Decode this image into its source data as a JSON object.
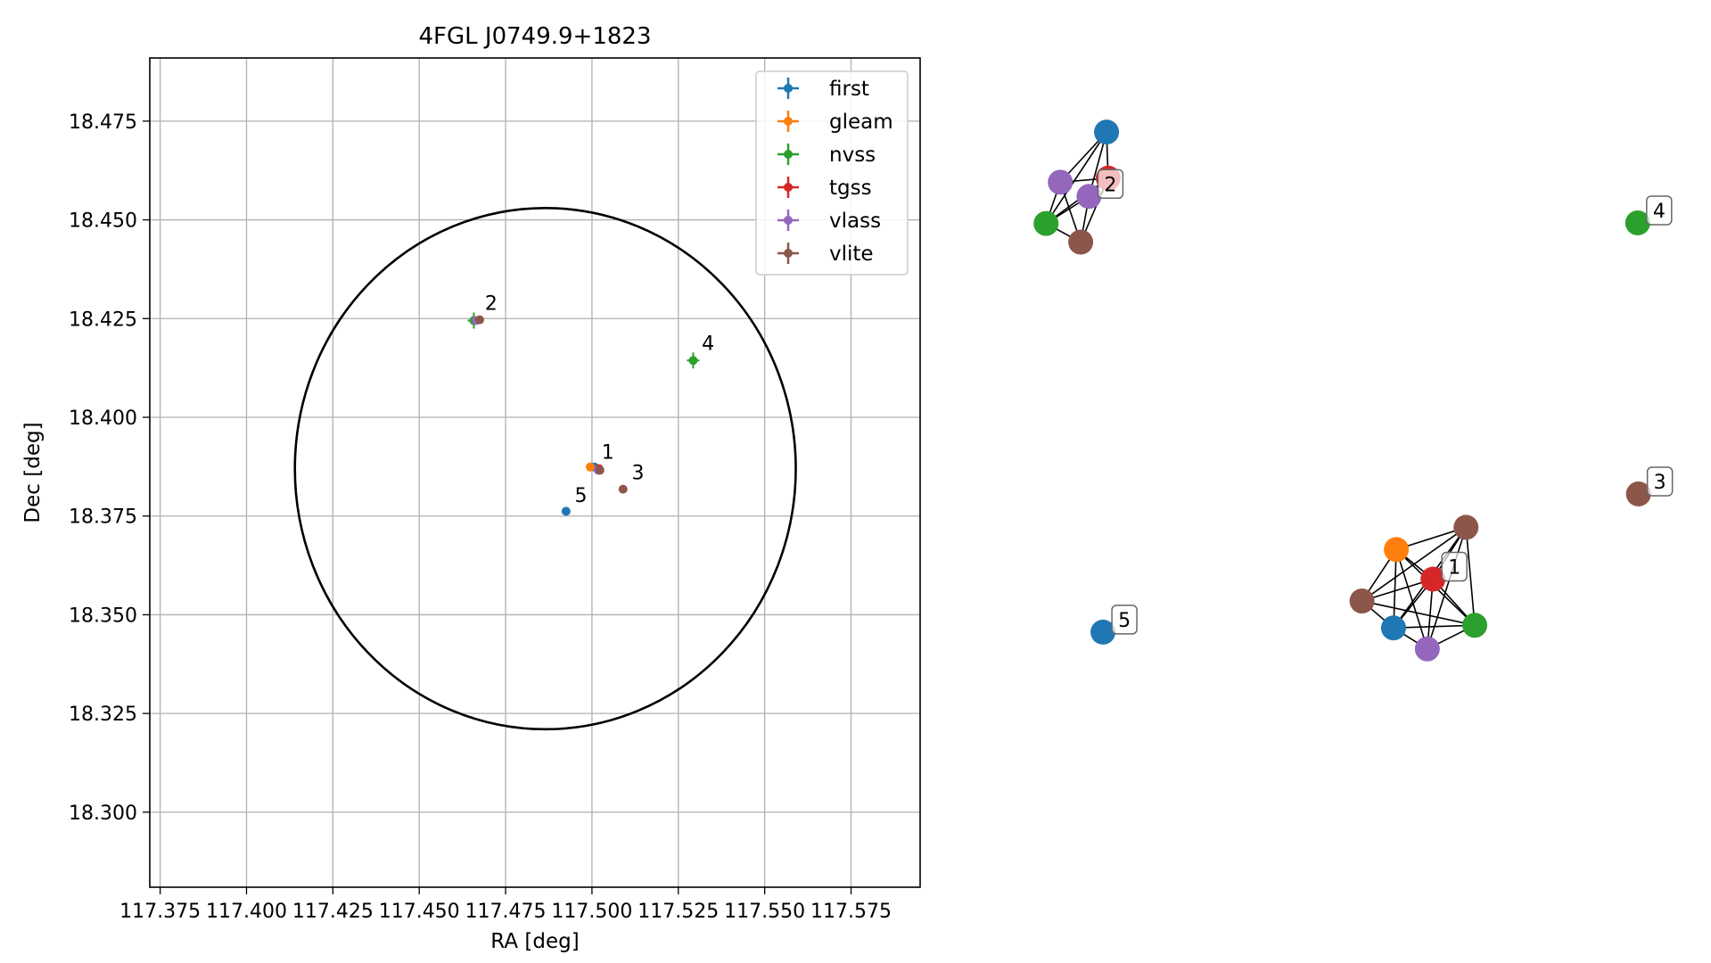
{
  "chart_data": [
    {
      "type": "scatter",
      "title": "4FGL J0749.9+1823",
      "xlabel": "RA [deg]",
      "ylabel": "Dec [deg]",
      "xlim": [
        117.372,
        117.595
      ],
      "ylim": [
        18.281,
        18.491
      ],
      "x_ticks": [
        "117.375",
        "117.400",
        "117.425",
        "117.450",
        "117.475",
        "117.500",
        "117.525",
        "117.550",
        "117.575"
      ],
      "y_ticks": [
        "18.300",
        "18.325",
        "18.350",
        "18.375",
        "18.400",
        "18.425",
        "18.450",
        "18.475"
      ],
      "grid": true,
      "legend_position": "top-right",
      "circle": {
        "center": [
          117.4865,
          18.387
        ],
        "radius_x": 0.0725,
        "radius_y": 0.066
      },
      "series": [
        {
          "name": "first",
          "color": "#1f77b4",
          "points": [
            {
              "x": 117.5007,
              "y": 18.3874
            },
            {
              "x": 117.4925,
              "y": 18.3762
            }
          ]
        },
        {
          "name": "gleam",
          "color": "#ff7f0e",
          "points": [
            {
              "x": 117.4995,
              "y": 18.3874
            }
          ]
        },
        {
          "name": "nvss",
          "color": "#2ca02c",
          "points": [
            {
              "x": 117.4658,
              "y": 18.4245
            },
            {
              "x": 117.5293,
              "y": 18.4144
            }
          ]
        },
        {
          "name": "tgss",
          "color": "#d62728",
          "points": [
            {
              "x": 117.502,
              "y": 18.387
            }
          ]
        },
        {
          "name": "vlass",
          "color": "#9467bd",
          "points": [
            {
              "x": 117.4665,
              "y": 18.4245
            },
            {
              "x": 117.5018,
              "y": 18.3866
            }
          ]
        },
        {
          "name": "vlite",
          "color": "#8c564b",
          "points": [
            {
              "x": 117.4675,
              "y": 18.4247
            },
            {
              "x": 117.5023,
              "y": 18.3866
            },
            {
              "x": 117.509,
              "y": 18.3818
            }
          ]
        }
      ],
      "annotations": [
        {
          "text": "1",
          "x": 117.5028,
          "y": 18.3895
        },
        {
          "text": "2",
          "x": 117.469,
          "y": 18.4272
        },
        {
          "text": "3",
          "x": 117.5115,
          "y": 18.3843
        },
        {
          "text": "4",
          "x": 117.5318,
          "y": 18.417
        },
        {
          "text": "5",
          "x": 117.495,
          "y": 18.3786
        }
      ]
    },
    {
      "type": "network",
      "nodes": [
        {
          "id": "g2-first",
          "color": "#1f77b4",
          "x": 0.1146,
          "y": 0.9472
        },
        {
          "id": "g2-tgss",
          "color": "#d62728",
          "x": 0.1172,
          "y": 0.8792
        },
        {
          "id": "g2-vlass-a",
          "color": "#9467bd",
          "x": 0.0394,
          "y": 0.8732
        },
        {
          "id": "g2-vlass-b",
          "color": "#9467bd",
          "x": 0.0861,
          "y": 0.8523
        },
        {
          "id": "g2-nvss",
          "color": "#2ca02c",
          "x": 0.0163,
          "y": 0.8123
        },
        {
          "id": "g2-vlite",
          "color": "#8c564b",
          "x": 0.0726,
          "y": 0.7848
        },
        {
          "id": "g4-nvss",
          "color": "#2ca02c",
          "x": 0.978,
          "y": 0.8132
        },
        {
          "id": "g3-vlite",
          "color": "#8c564b",
          "x": 0.9792,
          "y": 0.4132
        },
        {
          "id": "g1-vlite",
          "color": "#8c564b",
          "x": 0.6989,
          "y": 0.3639
        },
        {
          "id": "g1-gleam",
          "color": "#ff7f0e",
          "x": 0.5856,
          "y": 0.3312
        },
        {
          "id": "g1-tgss",
          "color": "#d62728",
          "x": 0.6452,
          "y": 0.2875
        },
        {
          "id": "g1-vlite-b",
          "color": "#8c564b",
          "x": 0.5298,
          "y": 0.2552
        },
        {
          "id": "g1-first",
          "color": "#1f77b4",
          "x": 0.5811,
          "y": 0.2155
        },
        {
          "id": "g1-nvss",
          "color": "#2ca02c",
          "x": 0.7131,
          "y": 0.2194
        },
        {
          "id": "g1-vlass",
          "color": "#9467bd",
          "x": 0.636,
          "y": 0.1845
        },
        {
          "id": "g5-first",
          "color": "#1f77b4",
          "x": 0.1088,
          "y": 0.2093
        }
      ],
      "edges": [
        [
          "g2-first",
          "g2-tgss"
        ],
        [
          "g2-first",
          "g2-vlass-a"
        ],
        [
          "g2-first",
          "g2-nvss"
        ],
        [
          "g2-first",
          "g2-vlass-b"
        ],
        [
          "g2-tgss",
          "g2-vlass-a"
        ],
        [
          "g2-tgss",
          "g2-vlass-b"
        ],
        [
          "g2-tgss",
          "g2-nvss"
        ],
        [
          "g2-tgss",
          "g2-vlite"
        ],
        [
          "g2-vlass-a",
          "g2-nvss"
        ],
        [
          "g2-vlass-a",
          "g2-vlite"
        ],
        [
          "g2-vlass-b",
          "g2-nvss"
        ],
        [
          "g2-vlass-b",
          "g2-vlite"
        ],
        [
          "g2-nvss",
          "g2-vlite"
        ],
        [
          "g1-vlite",
          "g1-gleam"
        ],
        [
          "g1-vlite",
          "g1-tgss"
        ],
        [
          "g1-vlite",
          "g1-vlite-b"
        ],
        [
          "g1-vlite",
          "g1-first"
        ],
        [
          "g1-vlite",
          "g1-nvss"
        ],
        [
          "g1-vlite",
          "g1-vlass"
        ],
        [
          "g1-gleam",
          "g1-tgss"
        ],
        [
          "g1-gleam",
          "g1-vlite-b"
        ],
        [
          "g1-gleam",
          "g1-first"
        ],
        [
          "g1-gleam",
          "g1-nvss"
        ],
        [
          "g1-gleam",
          "g1-vlass"
        ],
        [
          "g1-tgss",
          "g1-first"
        ],
        [
          "g1-tgss",
          "g1-nvss"
        ],
        [
          "g1-tgss",
          "g1-vlass"
        ],
        [
          "g1-vlite-b",
          "g1-first"
        ],
        [
          "g1-vlite-b",
          "g1-nvss"
        ],
        [
          "g1-vlite-b",
          "g1-tgss"
        ],
        [
          "g1-first",
          "g1-nvss"
        ],
        [
          "g1-first",
          "g1-vlass"
        ],
        [
          "g1-vlass",
          "g1-nvss"
        ]
      ],
      "labels": [
        {
          "text": "2",
          "node": "g2-vlass-b"
        },
        {
          "text": "4",
          "node": "g4-nvss"
        },
        {
          "text": "3",
          "node": "g3-vlite"
        },
        {
          "text": "1",
          "node": "g1-tgss"
        },
        {
          "text": "5",
          "node": "g5-first"
        }
      ]
    }
  ]
}
